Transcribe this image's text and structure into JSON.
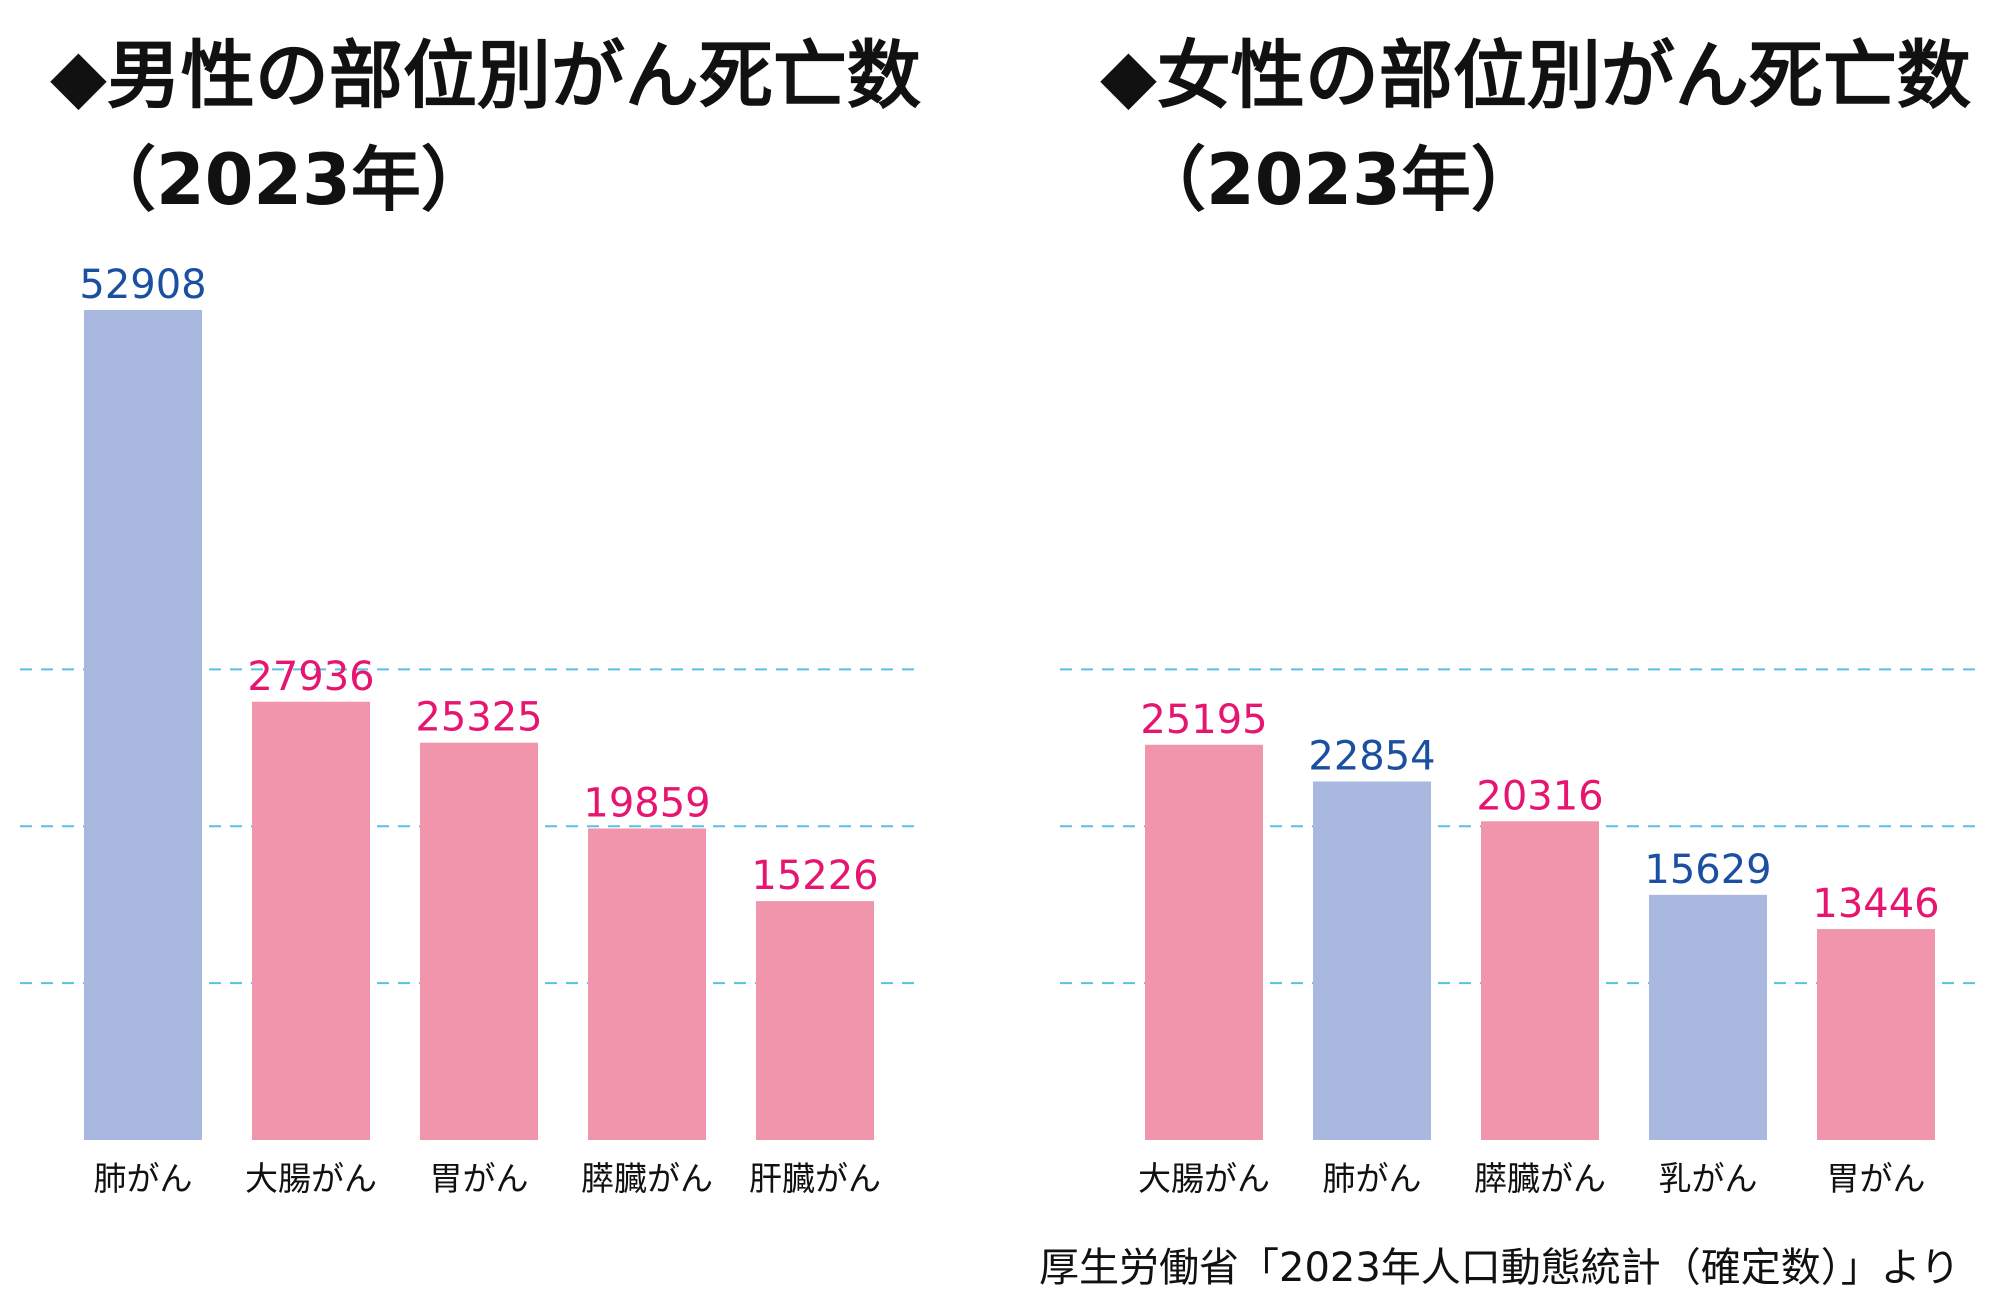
{
  "source": "厚生労働省「2023年人口動態統計（確定数）」より",
  "colors": {
    "male_bar": "#a9b8df",
    "female_bar": "#f095ab",
    "male_label": "#1b4fa0",
    "female_label": "#e6156f",
    "gridline": "#5bc0e6"
  },
  "chart_data": [
    {
      "type": "bar",
      "title": "◆男性の部位別がん死亡数",
      "subtitle": "（2023年）",
      "categories": [
        "肺がん",
        "大腸がん",
        "胃がん",
        "膵臓がん",
        "肝臓がん"
      ],
      "values": [
        52908,
        27936,
        25325,
        19859,
        15226
      ],
      "bar_colors": [
        "#a9b8df",
        "#f095ab",
        "#f095ab",
        "#f095ab",
        "#f095ab"
      ],
      "label_colors": [
        "#1b4fa0",
        "#e6156f",
        "#e6156f",
        "#e6156f",
        "#e6156f"
      ],
      "gridlines": [
        10000,
        20000,
        30000
      ],
      "ylim": [
        0,
        55000
      ],
      "xlabel": "",
      "ylabel": ""
    },
    {
      "type": "bar",
      "title": "◆女性の部位別がん死亡数",
      "subtitle": "（2023年）",
      "categories": [
        "大腸がん",
        "肺がん",
        "膵臓がん",
        "乳がん",
        "胃がん"
      ],
      "values": [
        25195,
        22854,
        20316,
        15629,
        13446
      ],
      "bar_colors": [
        "#f095ab",
        "#a9b8df",
        "#f095ab",
        "#a9b8df",
        "#f095ab"
      ],
      "label_colors": [
        "#e6156f",
        "#1b4fa0",
        "#e6156f",
        "#1b4fa0",
        "#e6156f"
      ],
      "gridlines": [
        10000,
        20000,
        30000
      ],
      "ylim": [
        0,
        55000
      ],
      "xlabel": "",
      "ylabel": ""
    }
  ]
}
